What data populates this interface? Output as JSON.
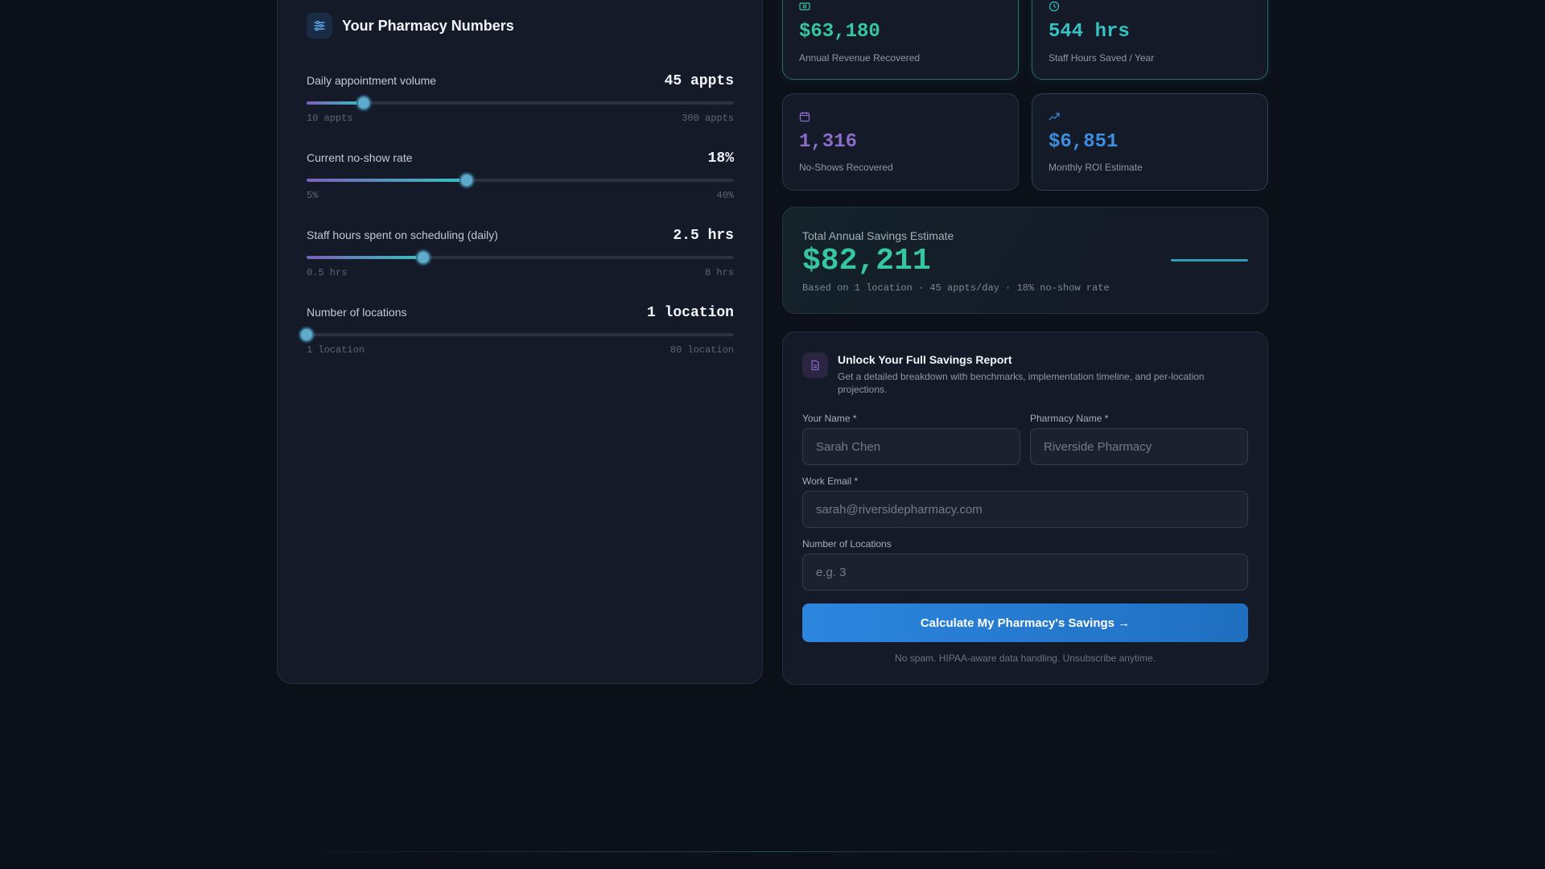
{
  "inputs_panel": {
    "title": "Your Pharmacy Numbers",
    "header_icon": "sliders-icon",
    "sliders": [
      {
        "label": "Daily appointment volume",
        "value_text": "45 appts",
        "min_text": "10 appts",
        "max_text": "300 appts",
        "fraction": 0.134
      },
      {
        "label": "Current no-show rate",
        "value_text": "18%",
        "min_text": "5%",
        "max_text": "40%",
        "fraction": 0.374
      },
      {
        "label": "Staff hours spent on scheduling (daily)",
        "value_text": "2.5 hrs",
        "min_text": "0.5 hrs",
        "max_text": "8 hrs",
        "fraction": 0.274
      },
      {
        "label": "Number of locations",
        "value_text": "1 location",
        "min_text": "1 location",
        "max_text": "80 location",
        "fraction": 0.0
      }
    ]
  },
  "stats": {
    "revenue": {
      "value": "$63,180",
      "label": "Annual Revenue Recovered",
      "icon": "cash-icon",
      "color": "#36c7a0"
    },
    "hours": {
      "value": "544 hrs",
      "label": "Staff Hours Saved / Year",
      "icon": "clock-icon",
      "color": "#36c2c0"
    },
    "noshows": {
      "value": "1,316",
      "label": "No-Shows Recovered",
      "icon": "calendar-icon",
      "color": "#8b6cc9"
    },
    "roi": {
      "value": "$6,851",
      "label": "Monthly ROI Estimate",
      "icon": "trending-up-icon",
      "color": "#3f8fe0"
    }
  },
  "total": {
    "label": "Total Annual Savings Estimate",
    "value": "$82,211",
    "subtext": "Based on 1 location · 45 appts/day · 18% no-show rate"
  },
  "form": {
    "icon": "document-icon",
    "title": "Unlock Your Full Savings Report",
    "description": "Get a detailed breakdown with benchmarks, implementation timeline, and per-location projections.",
    "name_label": "Your Name *",
    "name_placeholder": "Sarah Chen",
    "pharmacy_label": "Pharmacy Name *",
    "pharmacy_placeholder": "Riverside Pharmacy",
    "email_label": "Work Email *",
    "email_placeholder": "sarah@riversidepharmacy.com",
    "locations_label": "Number of Locations",
    "locations_placeholder": "e.g. 3",
    "submit_label": "Calculate My Pharmacy's Savings →",
    "footnote": "No spam. HIPAA-aware data handling. Unsubscribe anytime."
  }
}
